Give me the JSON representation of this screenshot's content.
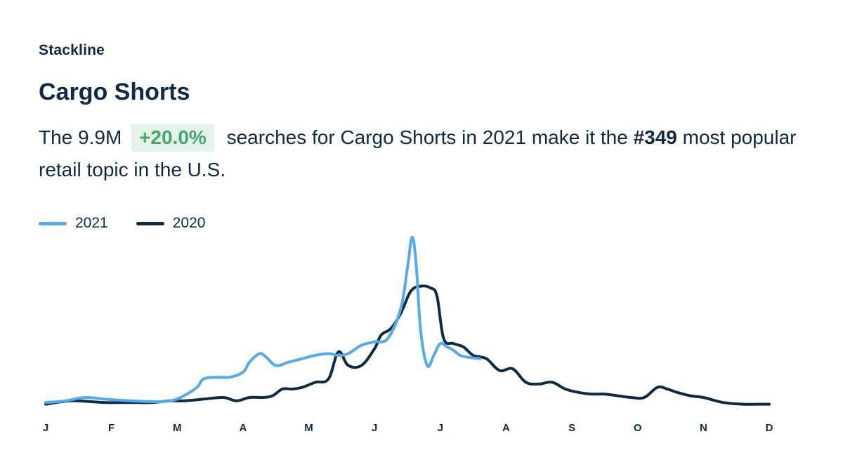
{
  "brand": {
    "name": "Stackline"
  },
  "header": {
    "title": "Cargo Shorts"
  },
  "summary": {
    "prefix": "The ",
    "searches": "9.9M",
    "change": "+20.0%",
    "middle": "searches for Cargo Shorts in 2021 make it the ",
    "rank": "#349",
    "suffix": " most popular retail topic in the U.S."
  },
  "colors": {
    "series_2021": "#55aaeb",
    "series_2020": "#0f2a47",
    "badge_bg": "#e3f3e9",
    "badge_text": "#43a86a"
  },
  "chart_data": {
    "type": "line",
    "title": "",
    "xlabel": "",
    "ylabel": "",
    "ylim": [
      0,
      100
    ],
    "x_ticks": [
      "J",
      "F",
      "M",
      "A",
      "M",
      "J",
      "J",
      "A",
      "S",
      "O",
      "N",
      "D"
    ],
    "x_range": [
      0,
      11
    ],
    "legend_position": "top-left",
    "series": [
      {
        "name": "2021",
        "color": "#55aaeb",
        "x": [
          0,
          0.3,
          0.6,
          0.9,
          1.3,
          1.6,
          1.9,
          2.1,
          2.3,
          2.4,
          2.6,
          2.8,
          3.0,
          3.1,
          3.25,
          3.35,
          3.5,
          3.7,
          3.9,
          4.1,
          4.3,
          4.45,
          4.6,
          4.8,
          5.0,
          5.2,
          5.4,
          5.5,
          5.57,
          5.63,
          5.7,
          5.8,
          5.9,
          6.0,
          6.1,
          6.2,
          6.3,
          6.4,
          6.6
        ],
        "values": [
          2,
          3,
          5,
          4,
          3,
          2.5,
          3,
          6,
          11,
          16,
          17,
          17,
          20,
          26,
          31,
          29,
          24,
          26,
          28,
          30,
          31,
          30,
          31,
          36,
          38,
          40,
          58,
          82,
          100,
          85,
          45,
          24,
          30,
          37,
          35,
          33,
          30,
          29,
          28
        ]
      },
      {
        "name": "2020",
        "color": "#0f2a47",
        "x": [
          0,
          0.4,
          0.9,
          1.2,
          1.6,
          1.9,
          2.1,
          2.4,
          2.7,
          2.9,
          3.1,
          3.3,
          3.45,
          3.6,
          3.75,
          3.9,
          4.1,
          4.3,
          4.45,
          4.6,
          4.8,
          5.0,
          5.1,
          5.25,
          5.4,
          5.55,
          5.7,
          5.85,
          5.95,
          6.05,
          6.2,
          6.35,
          6.5,
          6.7,
          6.9,
          7.1,
          7.3,
          7.5,
          7.7,
          7.9,
          8.1,
          8.3,
          8.5,
          8.7,
          8.9,
          9.1,
          9.3,
          9.45,
          9.6,
          9.8,
          10.0,
          10.3,
          10.6,
          10.9,
          11.0
        ],
        "values": [
          1,
          3,
          2,
          2,
          2,
          3,
          3,
          4,
          5,
          3,
          5,
          5,
          6,
          10,
          10,
          11,
          14,
          16,
          32,
          24,
          24,
          34,
          42,
          46,
          55,
          68,
          71,
          70,
          65,
          40,
          37,
          35,
          30,
          28,
          21,
          22,
          14,
          13,
          14,
          10,
          8,
          7,
          7,
          6,
          5,
          5,
          11,
          10,
          8,
          6,
          5,
          2,
          1,
          1,
          1
        ]
      }
    ]
  }
}
